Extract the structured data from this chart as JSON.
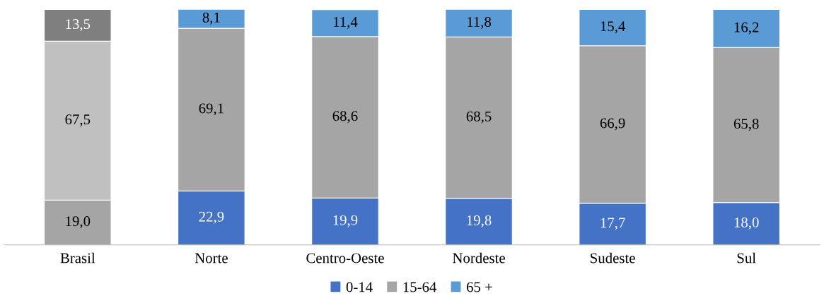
{
  "chart_data": {
    "type": "bar",
    "stacked": true,
    "categories": [
      "Brasil",
      "Norte",
      "Centro-Oeste",
      "Nordeste",
      "Sudeste",
      "Sul"
    ],
    "series": [
      {
        "name": "0-14",
        "color": "#4472c4",
        "colors": [
          "#a5a5a5",
          "#4472c4",
          "#4472c4",
          "#4472c4",
          "#4472c4",
          "#4472c4"
        ],
        "values": [
          19.0,
          22.9,
          19.9,
          19.8,
          17.7,
          18.0
        ],
        "value_labels": [
          "19,0",
          "22,9",
          "19,9",
          "19,8",
          "17,7",
          "18,0"
        ]
      },
      {
        "name": "15-64",
        "color": "#a5a5a5",
        "colors": [
          "#c0c0c0",
          "#a5a5a5",
          "#a5a5a5",
          "#a5a5a5",
          "#a5a5a5",
          "#a5a5a5"
        ],
        "values": [
          67.5,
          69.1,
          68.6,
          68.5,
          66.9,
          65.8
        ],
        "value_labels": [
          "67,5",
          "69,1",
          "68,6",
          "68,5",
          "66,9",
          "65,8"
        ]
      },
      {
        "name": "65 +",
        "color": "#5b9bd5",
        "colors": [
          "#7f7f7f",
          "#5b9bd5",
          "#5b9bd5",
          "#5b9bd5",
          "#5b9bd5",
          "#5b9bd5"
        ],
        "values": [
          13.5,
          8.1,
          11.4,
          11.8,
          15.4,
          16.2
        ],
        "value_labels": [
          "13,5",
          "8,1",
          "11,4",
          "11,8",
          "15,4",
          "16,2"
        ]
      }
    ],
    "legend": "bottom",
    "tick_labels": "x",
    "grid": false
  }
}
